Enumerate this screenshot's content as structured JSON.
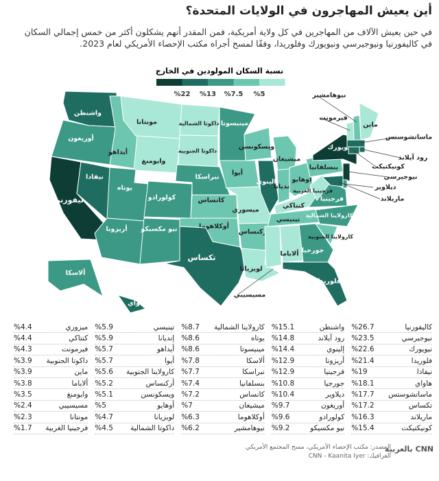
{
  "header": {
    "title": "أين يعيش المهاجرون في الولايات المتحدة؟",
    "subtitle": "في حين يعيش الآلاف من المهاجرين في كل ولاية أمريكية، فمن المقدر أنهم يشكلون أكثر من خمس إجمالي السكان في كاليفورنيا ونيوجيرسي ونيويورك وفلوريدا، وفقًا لمسح أجراه مكتب الإحصاء الأمريكي لعام 2023."
  },
  "legend": {
    "title": "نسبة السكان المولودين في الخارج",
    "colors": [
      "#0e3d36",
      "#1f6d60",
      "#3b9985",
      "#6dc7b0",
      "#a9e7d6"
    ],
    "ticks": [
      {
        "value": 22,
        "label": "%22"
      },
      {
        "value": 13,
        "label": "%13"
      },
      {
        "value": 7.5,
        "label": "%7.5"
      },
      {
        "value": 5,
        "label": "%5"
      }
    ]
  },
  "map": {
    "states": [
      "واشنطن",
      "أوريغون",
      "كاليفورنيا",
      "نيفادا",
      "أيداهو",
      "مونتانا",
      "وايومنغ",
      "يوتاه",
      "كولورادو",
      "أريزونا",
      "نيو مكسيكو",
      "داكوتا الشمالية",
      "داكوتا الجنوبية",
      "نبراسكا",
      "كانساس",
      "أوكلاهوما",
      "تكساس",
      "مينيسوتا",
      "أيوا",
      "ميسوري",
      "أركنساس",
      "لويزيانا",
      "ويسكونسن",
      "إلينوي",
      "ميشيغان",
      "إنديانا",
      "أوهايو",
      "كنتاكي",
      "تينيسي",
      "مسيسيبي",
      "ألاباما",
      "جورجيا",
      "فلوريدا",
      "كارولاينا الجنوبية",
      "كارولاينا الشمالية",
      "فرجينيا",
      "فرجينيا الغربية",
      "بنسلفانيا",
      "نيويورك",
      "فيرمونت",
      "نيوهامشير",
      "ماين",
      "ماساتشوستس",
      "رود آيلاند",
      "كونيكتيكت",
      "نيوجيرسي",
      "ديلاوير",
      "ماريلاند",
      "ألاسكا",
      "هاواي"
    ]
  },
  "table": {
    "columns": [
      [
        [
          "كاليفورنيا",
          "%26.7"
        ],
        [
          "نيوجيرسي",
          "%23.5"
        ],
        [
          "نيويورك",
          "%22.6"
        ],
        [
          "فلوريدا",
          "%21.4"
        ],
        [
          "نيفادا",
          "%19"
        ],
        [
          "هاواي",
          "%18.1"
        ],
        [
          "ماساتشوستس",
          "%17.7"
        ],
        [
          "تكساس",
          "%17.2"
        ],
        [
          "ماريلاند",
          "%16.3"
        ],
        [
          "كونيكتيكت",
          "%15.4"
        ]
      ],
      [
        [
          "واشنطن",
          "%15.1"
        ],
        [
          "رود آيلاند",
          "%14.8"
        ],
        [
          "إلينوي",
          "%14.4"
        ],
        [
          "أريزونا",
          "%12.9"
        ],
        [
          "فرجينيا",
          "%12.9"
        ],
        [
          "جورجيا",
          "%10.8"
        ],
        [
          "ديلاوير",
          "%10.4"
        ],
        [
          "أوريغون",
          "%9.7"
        ],
        [
          "كولورادو",
          "%9.6"
        ],
        [
          "نيو مكسيكو",
          "%9.2"
        ]
      ],
      [
        [
          "كارولاينا الشمالية",
          "%8.7"
        ],
        [
          "يوتاه",
          "%8.6"
        ],
        [
          "مينيسوتا",
          "%8.6"
        ],
        [
          "ألاسكا",
          "%7.8"
        ],
        [
          "نبراسكا",
          "%7.7"
        ],
        [
          "بنسلفانيا",
          "%7.4"
        ],
        [
          "كانساس",
          "%7.2"
        ],
        [
          "ميشيغان",
          "%7"
        ],
        [
          "أوكلاهوما",
          "%6.3"
        ],
        [
          "نيوهامشير",
          "%6.2"
        ]
      ],
      [
        [
          "تينيسي",
          "%5.9"
        ],
        [
          "إنديانا",
          "%5.9"
        ],
        [
          "أيداهو",
          "%5.7"
        ],
        [
          "أيوا",
          "%5.7"
        ],
        [
          "كارولاينا الجنوبية",
          "%5.6"
        ],
        [
          "أركنساس",
          "%5.2"
        ],
        [
          "ويسكونسن",
          "%5.1"
        ],
        [
          "أوهايو",
          "%5"
        ],
        [
          "لويزيانا",
          "%4.7"
        ],
        [
          "داكوتا الشمالية",
          "%4.5"
        ]
      ],
      [
        [
          "ميزوري",
          "%4.4"
        ],
        [
          "كنتاكي",
          "%4.4"
        ],
        [
          "فيرمونت",
          "%4.3"
        ],
        [
          "داكوتا الجنوبية",
          "%3.9"
        ],
        [
          "ماين",
          "%3.9"
        ],
        [
          "ألاباما",
          "%3.8"
        ],
        [
          "وايومنغ",
          "%3.5"
        ],
        [
          "مسيسيبي",
          "%2.4"
        ],
        [
          "مونتانا",
          "%2.3"
        ],
        [
          "فرجينيا الغربية",
          "%1.7"
        ]
      ]
    ]
  },
  "footer": {
    "source": "المصدر: مكتب الإحصاء الأمريكي، مسح المجتمع الأمريكي",
    "credit": "الغرافيك: CNN - Kaanita Iyer",
    "logo": "CNN",
    "logo_text": "بالعربية"
  }
}
